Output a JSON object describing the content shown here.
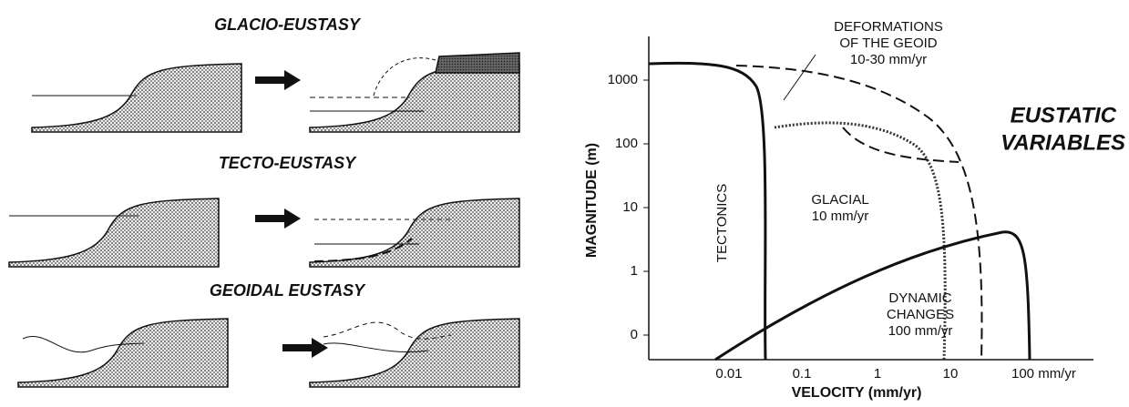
{
  "panels": [
    {
      "title": "GLACIO-EUSTASY"
    },
    {
      "title": "TECTO-EUSTASY"
    },
    {
      "title": "GEOIDAL EUSTASY"
    }
  ],
  "plot": {
    "title": [
      "EUSTATIC",
      "VARIABLES"
    ],
    "y_label": "MAGNITUDE (m)",
    "x_label": "VELOCITY (mm/yr)",
    "y_ticks": [
      "1000",
      "100",
      "10",
      "1",
      "0"
    ],
    "x_ticks": [
      "0.01",
      "0.1",
      "1",
      "10",
      "100 mm/yr"
    ],
    "regions": [
      {
        "label": [
          "DEFORMATIONS",
          "OF THE GEOID",
          "10-30 mm/yr"
        ]
      },
      {
        "label": [
          "TECTONICS"
        ]
      },
      {
        "label": [
          "GLACIAL",
          "10 mm/yr"
        ]
      },
      {
        "label": [
          "DYNAMIC",
          "CHANGES",
          "100 mm/yr"
        ]
      }
    ]
  }
}
